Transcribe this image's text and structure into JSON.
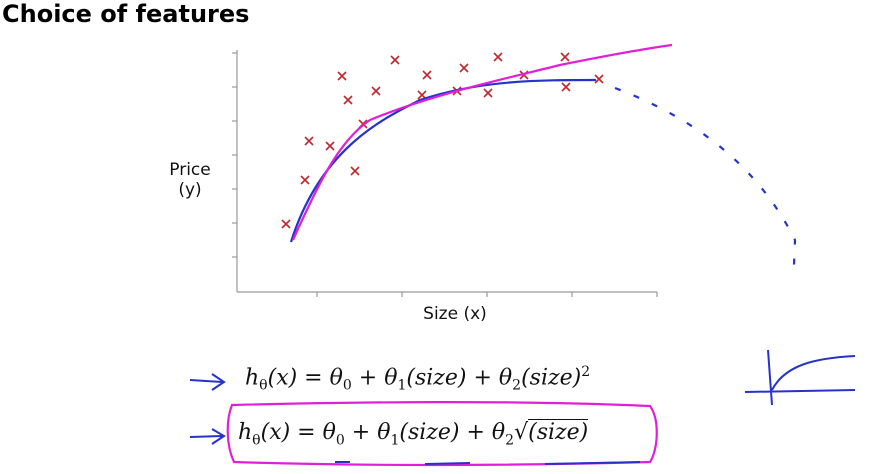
{
  "title": "Choice of features",
  "plot": {
    "y_label": [
      "Price",
      "(y)"
    ],
    "x_label": "Size (x)"
  },
  "formulas": [
    [
      "h",
      "θ",
      "(x) = θ",
      "0",
      " + θ",
      "1",
      "(size) + θ",
      "2",
      "(size)",
      "2"
    ],
    [
      "h",
      "θ",
      "(x) = θ",
      "0",
      " + θ",
      "1",
      "(size) + θ",
      "2",
      "√",
      "(size)"
    ]
  ]
}
